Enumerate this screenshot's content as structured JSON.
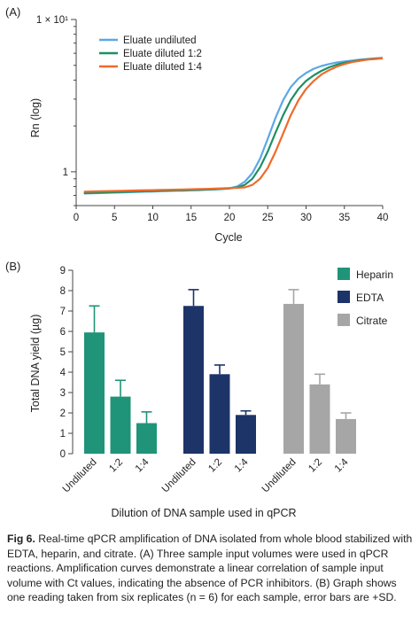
{
  "chart_data": [
    {
      "type": "line",
      "panel_label": "(A)",
      "xlabel": "Cycle",
      "ylabel": "Rn (log)",
      "yscale": "log",
      "xlim": [
        0,
        40
      ],
      "ylim": [
        0.6,
        10
      ],
      "x_ticks": [
        0,
        5,
        10,
        15,
        20,
        25,
        30,
        35,
        40
      ],
      "x_tick_labels": [
        "0",
        "5",
        "10",
        "15",
        "20",
        "25",
        "30",
        "35",
        "40"
      ],
      "y_tick_labels": [
        "1",
        "1 × 10¹"
      ],
      "legend_position": "top-left",
      "x": [
        1,
        2,
        3,
        4,
        5,
        6,
        7,
        8,
        9,
        10,
        11,
        12,
        13,
        14,
        15,
        16,
        17,
        18,
        19,
        20,
        21,
        22,
        23,
        24,
        25,
        26,
        27,
        28,
        29,
        30,
        31,
        32,
        33,
        34,
        35,
        36,
        37,
        38,
        39,
        40
      ],
      "series": [
        {
          "name": "Eluate undiluted",
          "color": "#5ba8e6",
          "values": [
            0.72,
            0.722,
            0.725,
            0.727,
            0.73,
            0.732,
            0.735,
            0.738,
            0.74,
            0.742,
            0.745,
            0.748,
            0.75,
            0.752,
            0.755,
            0.758,
            0.762,
            0.766,
            0.77,
            0.78,
            0.8,
            0.86,
            0.98,
            1.22,
            1.65,
            2.25,
            2.95,
            3.6,
            4.1,
            4.45,
            4.75,
            4.95,
            5.1,
            5.22,
            5.3,
            5.38,
            5.44,
            5.5,
            5.55,
            5.6
          ]
        },
        {
          "name": "Eluate diluted 1:2",
          "color": "#1e8f63",
          "values": [
            0.725,
            0.727,
            0.73,
            0.732,
            0.735,
            0.737,
            0.74,
            0.742,
            0.745,
            0.747,
            0.75,
            0.752,
            0.755,
            0.757,
            0.76,
            0.762,
            0.765,
            0.768,
            0.772,
            0.778,
            0.79,
            0.82,
            0.9,
            1.07,
            1.36,
            1.8,
            2.35,
            2.95,
            3.5,
            3.95,
            4.3,
            4.6,
            4.85,
            5.05,
            5.2,
            5.3,
            5.4,
            5.47,
            5.53,
            5.58
          ]
        },
        {
          "name": "Eluate diluted 1:4",
          "color": "#f06a2a",
          "values": [
            0.74,
            0.742,
            0.744,
            0.746,
            0.748,
            0.75,
            0.752,
            0.754,
            0.756,
            0.758,
            0.76,
            0.762,
            0.764,
            0.766,
            0.768,
            0.77,
            0.772,
            0.775,
            0.778,
            0.782,
            0.784,
            0.79,
            0.82,
            0.9,
            1.06,
            1.35,
            1.78,
            2.35,
            2.95,
            3.5,
            3.95,
            4.35,
            4.65,
            4.9,
            5.1,
            5.25,
            5.35,
            5.45,
            5.5,
            5.55
          ]
        }
      ]
    },
    {
      "type": "bar",
      "panel_label": "(B)",
      "ylabel": "Total DNA yield (µg)",
      "xlabel": "Dilution of DNA sample used in qPCR",
      "ylim": [
        0,
        9
      ],
      "y_ticks": [
        0,
        1,
        2,
        3,
        4,
        5,
        6,
        7,
        8,
        9
      ],
      "legend_position": "right",
      "groups": [
        {
          "name": "Heparin",
          "color": "#1f9478",
          "categories": [
            "Undiluted",
            "1:2",
            "1:4"
          ],
          "values": [
            5.95,
            2.8,
            1.5
          ],
          "errors": [
            1.3,
            0.8,
            0.55
          ]
        },
        {
          "name": "EDTA",
          "color": "#1c3468",
          "categories": [
            "Undiluted",
            "1:2",
            "1:4"
          ],
          "values": [
            7.25,
            3.9,
            1.9
          ],
          "errors": [
            0.8,
            0.45,
            0.2
          ]
        },
        {
          "name": "Citrate",
          "color": "#a6a6a6",
          "categories": [
            "Undiluted",
            "1:2",
            "1:4"
          ],
          "values": [
            7.35,
            3.4,
            1.7
          ],
          "errors": [
            0.7,
            0.5,
            0.3
          ]
        }
      ]
    }
  ],
  "caption": {
    "label": "Fig 6.",
    "text": "Real-time qPCR amplification of DNA isolated from whole blood stabilized with EDTA, heparin, and citrate. (A) Three sample input volumes were used in qPCR reactions. Amplification curves demonstrate a linear correlation of sample input volume with Ct values, indicating the absence of PCR inhibitors. (B) Graph shows one reading taken from six replicates (n = 6) for each sample, error bars are +SD."
  }
}
